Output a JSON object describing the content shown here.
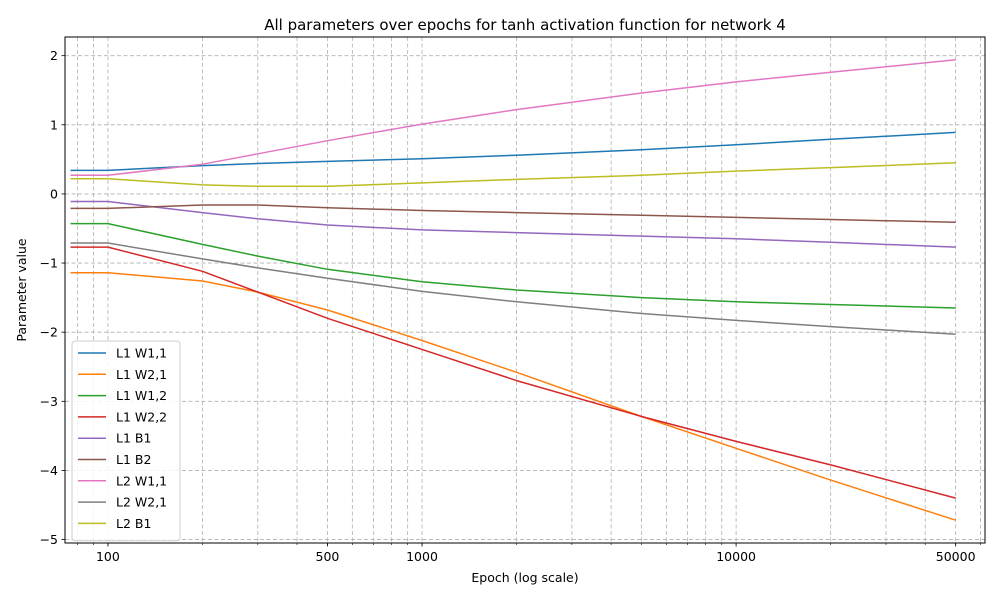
{
  "chart_data": {
    "type": "line",
    "title": "All parameters over epochs for tanh activation function for network 4",
    "xlabel": "Epoch (log scale)",
    "ylabel": "Parameter value",
    "x_scale": "log",
    "xlim": [
      73,
      62000
    ],
    "ylim": [
      -5.05,
      2.27
    ],
    "x_ticks": [
      100,
      500,
      1000,
      10000,
      50000
    ],
    "x_tick_labels": [
      "100",
      "500",
      "1000",
      "10000",
      "50000"
    ],
    "y_ticks": [
      -5,
      -4,
      -3,
      -2,
      -1,
      0,
      1,
      2
    ],
    "y_tick_labels": [
      "−5",
      "−4",
      "−3",
      "−2",
      "−1",
      "0",
      "1",
      "2"
    ],
    "grid": true,
    "legend_position": "lower-left",
    "x": [
      76,
      100,
      200,
      300,
      500,
      1000,
      2000,
      5000,
      10000,
      20000,
      50000
    ],
    "series": [
      {
        "name": "L1 W1,1",
        "color": "#1f77b4",
        "values": [
          0.34,
          0.34,
          0.41,
          0.44,
          0.47,
          0.51,
          0.56,
          0.64,
          0.71,
          0.79,
          0.89
        ]
      },
      {
        "name": "L1 W2,1",
        "color": "#ff7f0e",
        "values": [
          -1.14,
          -1.14,
          -1.26,
          -1.42,
          -1.68,
          -2.12,
          -2.58,
          -3.22,
          -3.68,
          -4.14,
          -4.72
        ]
      },
      {
        "name": "L1 W1,2",
        "color": "#2ca02c",
        "values": [
          -0.43,
          -0.43,
          -0.73,
          -0.9,
          -1.09,
          -1.27,
          -1.39,
          -1.5,
          -1.56,
          -1.6,
          -1.65
        ]
      },
      {
        "name": "L1 W2,2",
        "color": "#d62728",
        "values": [
          -0.77,
          -0.77,
          -1.12,
          -1.42,
          -1.8,
          -2.25,
          -2.7,
          -3.22,
          -3.58,
          -3.92,
          -4.4
        ]
      },
      {
        "name": "L1 B1",
        "color": "#9467bd",
        "values": [
          -0.11,
          -0.11,
          -0.27,
          -0.36,
          -0.45,
          -0.52,
          -0.56,
          -0.61,
          -0.65,
          -0.7,
          -0.77
        ]
      },
      {
        "name": "L1 B2",
        "color": "#8c564b",
        "values": [
          -0.21,
          -0.21,
          -0.16,
          -0.16,
          -0.2,
          -0.24,
          -0.27,
          -0.31,
          -0.34,
          -0.37,
          -0.41
        ]
      },
      {
        "name": "L2 W1,1",
        "color": "#e377c2",
        "values": [
          0.27,
          0.27,
          0.43,
          0.58,
          0.77,
          1.01,
          1.22,
          1.46,
          1.62,
          1.76,
          1.94
        ]
      },
      {
        "name": "L2 W2,1",
        "color": "#7f7f7f",
        "values": [
          -0.71,
          -0.71,
          -0.94,
          -1.07,
          -1.22,
          -1.41,
          -1.56,
          -1.73,
          -1.83,
          -1.92,
          -2.03
        ]
      },
      {
        "name": "L2 B1",
        "color": "#bcbd22",
        "values": [
          0.22,
          0.22,
          0.13,
          0.11,
          0.11,
          0.16,
          0.21,
          0.27,
          0.33,
          0.38,
          0.45
        ]
      }
    ]
  }
}
